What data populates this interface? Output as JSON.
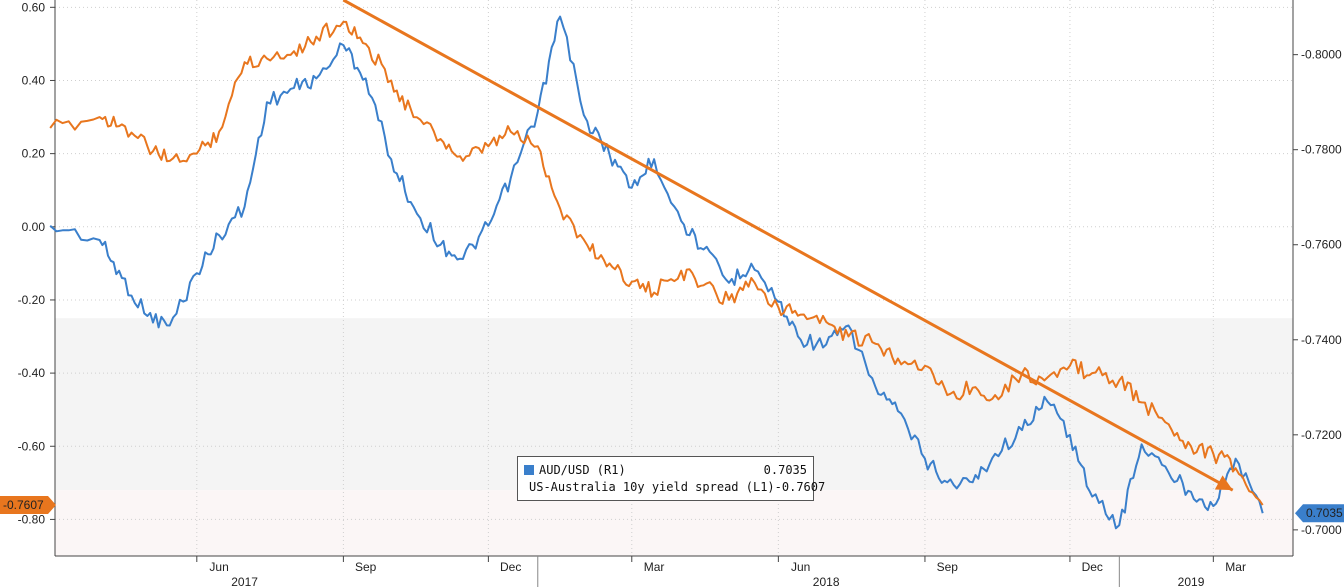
{
  "chart_data": {
    "type": "line",
    "title": "",
    "x_ticks": [
      "Jun",
      "Sep",
      "Dec",
      "Mar",
      "Jun",
      "Sep",
      "Dec",
      "Mar"
    ],
    "year_labels": [
      "2017",
      "2018",
      "2019"
    ],
    "left_axis": {
      "ylim": [
        -0.9,
        0.62
      ],
      "ticks": [
        0.6,
        0.4,
        0.2,
        0.0,
        -0.2,
        -0.4,
        -0.6,
        -0.8
      ],
      "tick_labels": [
        "0.60",
        "0.40",
        "0.20",
        "0.00",
        "-0.20",
        "-0.40",
        "-0.60",
        "-0.80"
      ]
    },
    "right_axis": {
      "ylim": [
        0.6945,
        0.8115
      ],
      "ticks": [
        0.8,
        0.78,
        0.76,
        0.74,
        0.72,
        0.7
      ],
      "tick_labels": [
        "0.8000",
        "0.7800",
        "0.7600",
        "0.7400",
        "0.7200",
        "0.7000"
      ]
    },
    "series": [
      {
        "name": "AUD/USD (R1)",
        "axis": "right",
        "color": "#3a7fcb",
        "last_value": "0.7035",
        "x": [
          "2017-03",
          "2017-04",
          "2017-04-15",
          "2017-05",
          "2017-05-15",
          "2017-06",
          "2017-06-15",
          "2017-07",
          "2017-07-15",
          "2017-08",
          "2017-08-15",
          "2017-09",
          "2017-09-15",
          "2017-10",
          "2017-10-15",
          "2017-11",
          "2017-11-15",
          "2017-12",
          "2017-12-15",
          "2018-01",
          "2018-01-15",
          "2018-02",
          "2018-02-15",
          "2018-03",
          "2018-03-15",
          "2018-04",
          "2018-04-15",
          "2018-05",
          "2018-05-15",
          "2018-06",
          "2018-06-15",
          "2018-07",
          "2018-07-15",
          "2018-08",
          "2018-08-15",
          "2018-09",
          "2018-09-15",
          "2018-10",
          "2018-10-15",
          "2018-11",
          "2018-11-15",
          "2018-12",
          "2018-12-15",
          "2019-01",
          "2019-01-15",
          "2019-02",
          "2019-02-15",
          "2019-03",
          "2019-03-15",
          "2019-04"
        ],
        "values": [
          0.764,
          0.761,
          0.753,
          0.745,
          0.743,
          0.754,
          0.762,
          0.768,
          0.79,
          0.793,
          0.795,
          0.802,
          0.795,
          0.778,
          0.768,
          0.76,
          0.757,
          0.764,
          0.774,
          0.788,
          0.808,
          0.786,
          0.779,
          0.772,
          0.778,
          0.765,
          0.759,
          0.752,
          0.756,
          0.748,
          0.74,
          0.739,
          0.743,
          0.73,
          0.725,
          0.715,
          0.71,
          0.71,
          0.716,
          0.721,
          0.728,
          0.72,
          0.707,
          0.701,
          0.718,
          0.712,
          0.708,
          0.705,
          0.715,
          0.7035
        ]
      },
      {
        "name": "US-Australia 10y yield spread (L1)",
        "axis": "left",
        "color": "#e8761e",
        "last_value": "-0.7607",
        "x": [
          "2017-03",
          "2017-04",
          "2017-04-15",
          "2017-05",
          "2017-05-15",
          "2017-06",
          "2017-06-15",
          "2017-07",
          "2017-07-15",
          "2017-08",
          "2017-08-15",
          "2017-09",
          "2017-09-15",
          "2017-10",
          "2017-10-15",
          "2017-11",
          "2017-11-15",
          "2017-12",
          "2017-12-15",
          "2018-01",
          "2018-01-15",
          "2018-02",
          "2018-02-15",
          "2018-03",
          "2018-03-15",
          "2018-04",
          "2018-04-15",
          "2018-05",
          "2018-05-15",
          "2018-06",
          "2018-06-15",
          "2018-07",
          "2018-07-15",
          "2018-08",
          "2018-08-15",
          "2018-09",
          "2018-09-15",
          "2018-10",
          "2018-10-15",
          "2018-11",
          "2018-11-15",
          "2018-12",
          "2018-12-15",
          "2019-01",
          "2019-01-15",
          "2019-02",
          "2019-02-15",
          "2019-03",
          "2019-03-15",
          "2019-04"
        ],
        "values": [
          0.27,
          0.3,
          0.28,
          0.22,
          0.18,
          0.2,
          0.26,
          0.45,
          0.46,
          0.48,
          0.52,
          0.56,
          0.5,
          0.4,
          0.3,
          0.24,
          0.18,
          0.22,
          0.26,
          0.22,
          0.05,
          -0.05,
          -0.1,
          -0.15,
          -0.18,
          -0.12,
          -0.16,
          -0.2,
          -0.14,
          -0.22,
          -0.24,
          -0.26,
          -0.3,
          -0.32,
          -0.36,
          -0.38,
          -0.46,
          -0.44,
          -0.46,
          -0.4,
          -0.42,
          -0.38,
          -0.4,
          -0.42,
          -0.48,
          -0.54,
          -0.6,
          -0.62,
          -0.66,
          -0.7607
        ]
      }
    ],
    "trend_line": {
      "color": "#e8761e",
      "axis": "left",
      "start": {
        "x": "2017-09",
        "value": 0.62
      },
      "end": {
        "x": "2019-04",
        "value": -0.72
      }
    },
    "legend": {
      "placement": "bottom-center",
      "entries": [
        {
          "label": "AUD/USD (R1)",
          "value": "0.7035",
          "color": "#3a7fcb"
        },
        {
          "label": "US-Australia 10y yield spread (L1)",
          "value": "-0.7607",
          "color": "#e8761e"
        }
      ]
    },
    "badges": {
      "left": {
        "text": "-0.7607",
        "color": "#e8761e",
        "value": -0.7607
      },
      "right": {
        "text": "0.7035",
        "color": "#3a7fcb",
        "value": 0.7035
      }
    },
    "grid": true
  }
}
